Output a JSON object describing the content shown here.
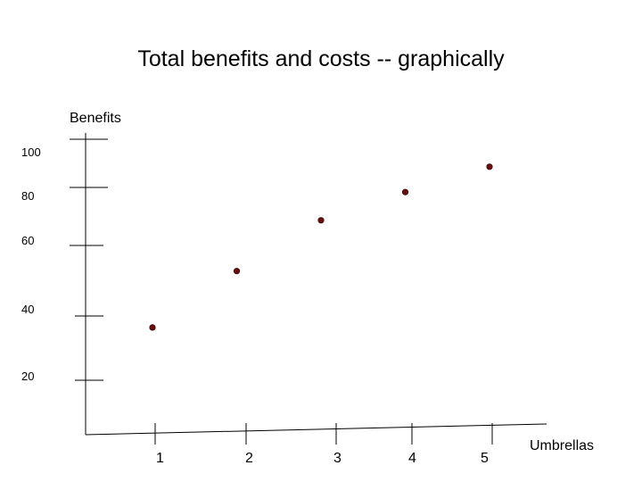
{
  "chart_data": {
    "type": "scatter",
    "title": "Total benefits and costs -- graphically",
    "xlabel": "Umbrellas",
    "ylabel": "Benefits",
    "x_ticks": [
      "1",
      "2",
      "3",
      "4",
      "5"
    ],
    "y_ticks": [
      "20",
      "40",
      "60",
      "80",
      "100"
    ],
    "x": [
      1,
      2,
      3,
      4,
      5
    ],
    "y": [
      38,
      58,
      76,
      86,
      95
    ],
    "point_color": "#6b0d0d",
    "grid": false,
    "legend": "none"
  }
}
